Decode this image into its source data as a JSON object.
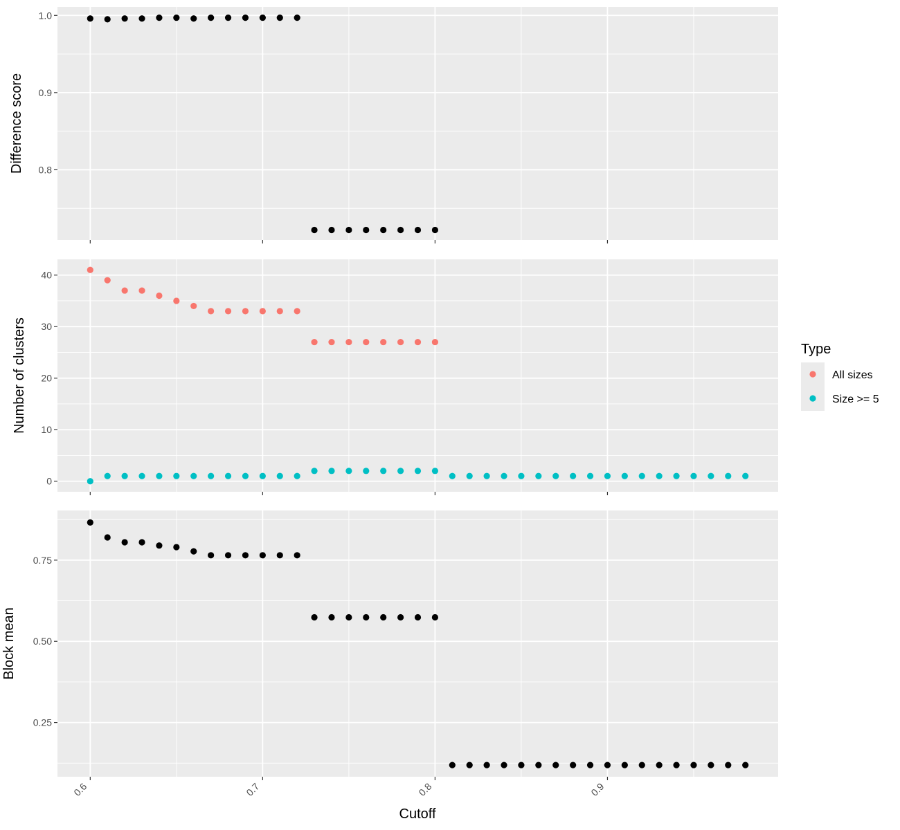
{
  "chart_data": {
    "type": "scatter",
    "facet_layout": "3 rows, shared x axis",
    "xlabel": "Cutoff",
    "x_ticks": [
      "0.6",
      "0.7",
      "0.8",
      "0.9"
    ],
    "x_tick_values": [
      0.6,
      0.7,
      0.8,
      0.9
    ],
    "xlim": [
      0.581,
      0.999
    ],
    "grid": true,
    "legend": {
      "title": "Type",
      "placement": "right",
      "entries": [
        {
          "label": "All sizes",
          "color": "#F8766D"
        },
        {
          "label": "Size >= 5",
          "color": "#00BFC4"
        }
      ]
    },
    "panels": [
      {
        "id": "difference",
        "ylabel": "Difference score",
        "ylim": [
          0.709,
          1.011
        ],
        "y_ticks": [
          "0.8",
          "0.9",
          "1.0"
        ],
        "y_tick_values": [
          0.8,
          0.9,
          1.0
        ],
        "show_x_labels": false,
        "series": [
          {
            "color": "#000000",
            "x": [
              0.6,
              0.61,
              0.62,
              0.63,
              0.64,
              0.65,
              0.66,
              0.67,
              0.68,
              0.69,
              0.7,
              0.71,
              0.72,
              0.73,
              0.74,
              0.75,
              0.76,
              0.77,
              0.78,
              0.79,
              0.8
            ],
            "y": [
              0.996,
              0.995,
              0.996,
              0.996,
              0.997,
              0.997,
              0.996,
              0.997,
              0.997,
              0.997,
              0.997,
              0.997,
              0.997,
              0.722,
              0.722,
              0.722,
              0.722,
              0.722,
              0.722,
              0.722,
              0.722
            ]
          }
        ]
      },
      {
        "id": "clusters",
        "ylabel": "Number of clusters",
        "ylim": [
          -2.05,
          43.05
        ],
        "y_ticks": [
          "0",
          "10",
          "20",
          "30",
          "40"
        ],
        "y_tick_values": [
          0,
          10,
          20,
          30,
          40
        ],
        "show_x_labels": false,
        "series": [
          {
            "name": "All sizes",
            "color": "#F8766D",
            "x": [
              0.6,
              0.61,
              0.62,
              0.63,
              0.64,
              0.65,
              0.66,
              0.67,
              0.68,
              0.69,
              0.7,
              0.71,
              0.72,
              0.73,
              0.74,
              0.75,
              0.76,
              0.77,
              0.78,
              0.79,
              0.8
            ],
            "y": [
              41,
              39,
              37,
              37,
              36,
              35,
              34,
              33,
              33,
              33,
              33,
              33,
              33,
              27,
              27,
              27,
              27,
              27,
              27,
              27,
              27
            ]
          },
          {
            "name": "Size >= 5",
            "color": "#00BFC4",
            "x": [
              0.6,
              0.61,
              0.62,
              0.63,
              0.64,
              0.65,
              0.66,
              0.67,
              0.68,
              0.69,
              0.7,
              0.71,
              0.72,
              0.73,
              0.74,
              0.75,
              0.76,
              0.77,
              0.78,
              0.79,
              0.8,
              0.81,
              0.82,
              0.83,
              0.84,
              0.85,
              0.86,
              0.87,
              0.88,
              0.89,
              0.9,
              0.91,
              0.92,
              0.93,
              0.94,
              0.95,
              0.96,
              0.97,
              0.98
            ],
            "y": [
              0,
              1,
              1,
              1,
              1,
              1,
              1,
              1,
              1,
              1,
              1,
              1,
              1,
              2,
              2,
              2,
              2,
              2,
              2,
              2,
              2,
              1,
              1,
              1,
              1,
              1,
              1,
              1,
              1,
              1,
              1,
              1,
              1,
              1,
              1,
              1,
              1,
              1,
              1
            ]
          }
        ]
      },
      {
        "id": "block",
        "ylabel": "Block mean",
        "ylim": [
          0.083,
          0.903
        ],
        "y_ticks": [
          "0.25",
          "0.50",
          "0.75"
        ],
        "y_tick_values": [
          0.25,
          0.5,
          0.75
        ],
        "show_x_labels": true,
        "series": [
          {
            "color": "#000000",
            "x": [
              0.6,
              0.61,
              0.62,
              0.63,
              0.64,
              0.65,
              0.66,
              0.67,
              0.68,
              0.69,
              0.7,
              0.71,
              0.72,
              0.73,
              0.74,
              0.75,
              0.76,
              0.77,
              0.78,
              0.79,
              0.8,
              0.81,
              0.82,
              0.83,
              0.84,
              0.85,
              0.86,
              0.87,
              0.88,
              0.89,
              0.9,
              0.91,
              0.92,
              0.93,
              0.94,
              0.95,
              0.96,
              0.97,
              0.98
            ],
            "y": [
              0.866,
              0.82,
              0.805,
              0.805,
              0.795,
              0.79,
              0.777,
              0.765,
              0.765,
              0.765,
              0.765,
              0.765,
              0.765,
              0.574,
              0.574,
              0.574,
              0.574,
              0.574,
              0.574,
              0.574,
              0.574,
              0.119,
              0.119,
              0.119,
              0.119,
              0.119,
              0.119,
              0.119,
              0.119,
              0.119,
              0.119,
              0.119,
              0.119,
              0.119,
              0.119,
              0.119,
              0.119,
              0.119,
              0.119
            ]
          }
        ]
      }
    ]
  }
}
